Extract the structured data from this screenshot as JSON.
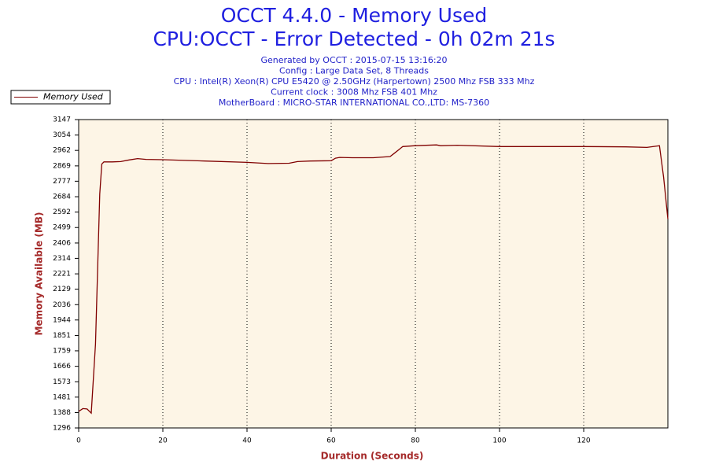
{
  "chart_data": {
    "type": "line",
    "title": "OCCT 4.4.0 - Memory Used",
    "subtitle": "CPU:OCCT - Error Detected - 0h 02m 21s",
    "info": [
      "Generated by OCCT : 2015-07-15 13:16:20",
      "Config : Large Data Set, 8 Threads",
      "CPU : Intel(R) Xeon(R) CPU E5420 @ 2.50GHz (Harpertown) 2500 Mhz FSB 333 Mhz",
      "Current clock : 3008 Mhz FSB 401 Mhz",
      "MotherBoard : MICRO-STAR INTERNATIONAL CO.,LTD: MS-7360"
    ],
    "x_label": "Duration (Seconds)",
    "y_label": "Memory Available (MB)",
    "x": [
      0,
      1,
      2,
      3,
      4,
      5,
      5.5,
      6,
      8,
      10,
      12,
      14,
      16,
      20,
      30,
      40,
      45,
      50,
      52,
      55,
      60,
      61,
      62,
      65,
      70,
      74,
      75,
      77,
      80,
      85,
      86,
      90,
      100,
      110,
      120,
      130,
      135,
      138,
      139,
      140
    ],
    "series": [
      {
        "name": "Memory Used",
        "color": "#800000",
        "values": [
          1395,
          1412,
          1410,
          1385,
          1800,
          2700,
          2880,
          2893,
          2893,
          2895,
          2905,
          2913,
          2908,
          2906,
          2898,
          2890,
          2883,
          2885,
          2895,
          2898,
          2900,
          2915,
          2920,
          2918,
          2918,
          2925,
          2945,
          2985,
          2990,
          2995,
          2990,
          2993,
          2985,
          2985,
          2985,
          2983,
          2980,
          2990,
          2800,
          2550
        ]
      }
    ],
    "xlim": [
      0,
      140
    ],
    "xticks": [
      0,
      20,
      40,
      60,
      80,
      100,
      120
    ],
    "ylim": [
      1296,
      3147
    ],
    "yticks": [
      1296,
      1388,
      1481,
      1573,
      1666,
      1759,
      1851,
      1944,
      2036,
      2129,
      2221,
      2314,
      2406,
      2499,
      2592,
      2684,
      2777,
      2869,
      2962,
      3054,
      3147
    ],
    "grid": true,
    "background": "#fdf5e6",
    "legend": "top-left"
  }
}
